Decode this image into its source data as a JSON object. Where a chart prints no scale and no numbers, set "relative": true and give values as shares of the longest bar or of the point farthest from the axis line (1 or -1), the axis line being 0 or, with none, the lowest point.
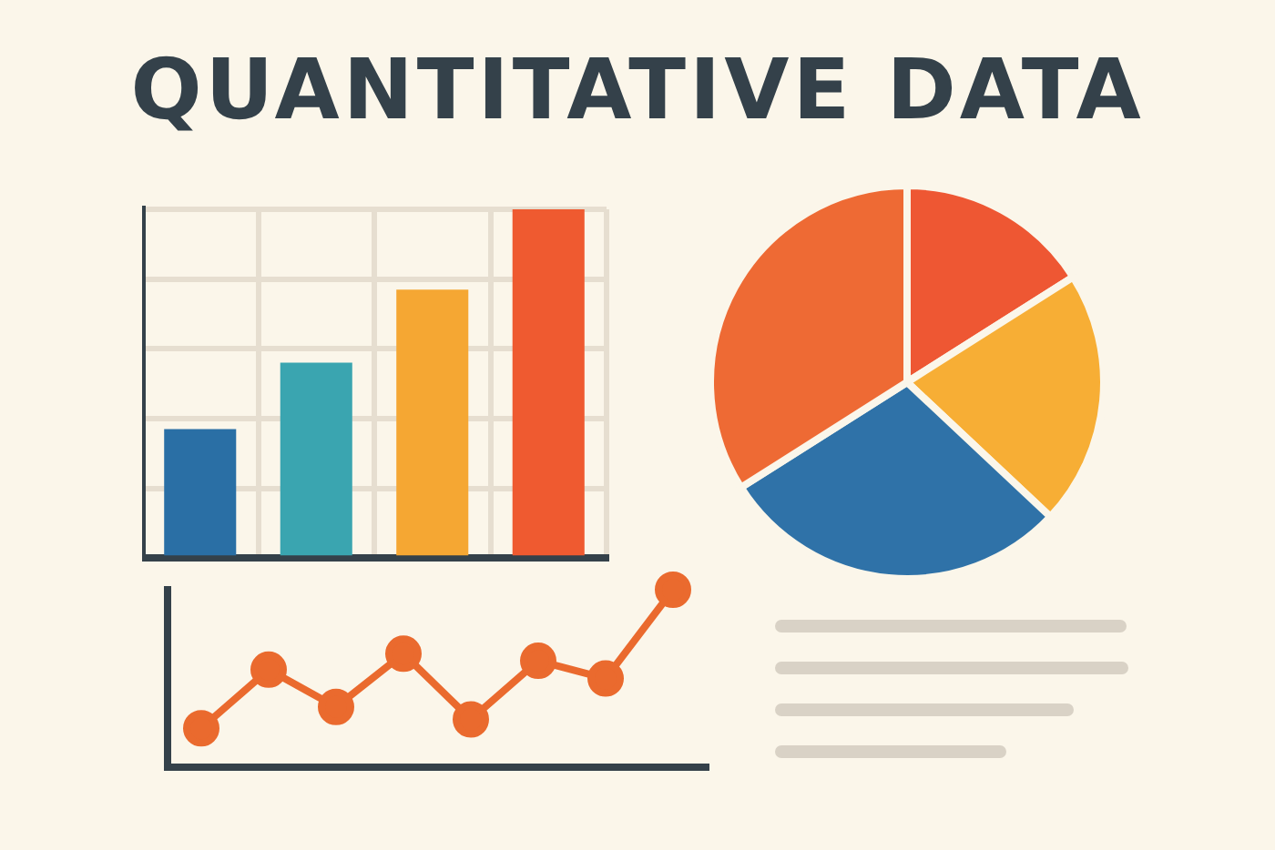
{
  "chart_data": [
    {
      "type": "bar",
      "title": "QUANTITATIVE DATA",
      "relative": true,
      "grid": true,
      "categories": [
        null,
        null,
        null,
        null
      ],
      "values": [
        0.37,
        0.56,
        0.77,
        1
      ],
      "colors": [
        "#2a6fa5",
        "#3aa5b0",
        "#f5a733",
        "#ef5a30"
      ]
    },
    {
      "type": "pie",
      "categories": [
        null,
        null,
        null,
        null
      ],
      "values": [
        16,
        21,
        29,
        34
      ],
      "colors": [
        "#ee5733",
        "#f7ae35",
        "#2f72a8",
        "#ee6a34"
      ]
    },
    {
      "type": "line",
      "relative": true,
      "marker": "circle",
      "categories": [
        null,
        null,
        null,
        null,
        null,
        null,
        null,
        null
      ],
      "series": [
        {
          "color": "#ea6a2e",
          "values": [
            0.22,
            0.55,
            0.34,
            0.64,
            0.27,
            0.6,
            0.5,
            1
          ]
        }
      ]
    }
  ]
}
